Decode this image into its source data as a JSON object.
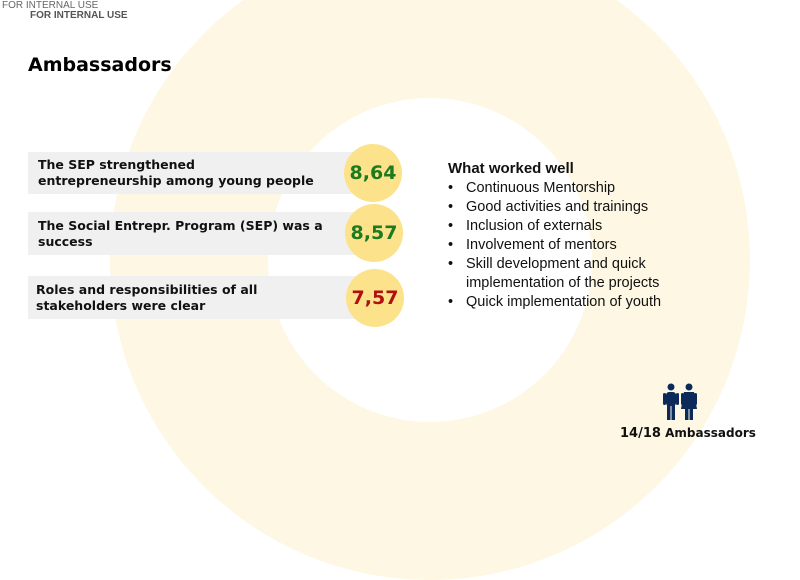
{
  "header": {
    "watermark_1": "FOR INTERNAL USE",
    "watermark_2": "FOR INTERNAL USE",
    "title": "Ambassadors"
  },
  "colors": {
    "ring": "#fdf7e3",
    "score_circle": "#fce28a",
    "good": "#1e7a1e",
    "bad": "#b01010",
    "icon": "#0b2a5a"
  },
  "ratings": [
    {
      "statement": "The SEP strengthened entrepreneurship among young people",
      "score": "8,64",
      "status": "good"
    },
    {
      "statement": "The Social Entrepr. Program (SEP) was a success",
      "score": "8,57",
      "status": "good"
    },
    {
      "statement": "Roles and responsibilities of all stakeholders were clear",
      "score": "7,57",
      "status": "bad"
    }
  ],
  "what_worked": {
    "heading": "What worked well",
    "items": [
      "Continuous Mentorship",
      "Good activities and trainings",
      "Inclusion of externals",
      "Involvement of mentors",
      "Skill development and quick implementation of the projects",
      "Quick implementation of youth"
    ]
  },
  "respondents": {
    "icon": "people-icon",
    "count": "14/18",
    "label": "Ambassadors"
  }
}
